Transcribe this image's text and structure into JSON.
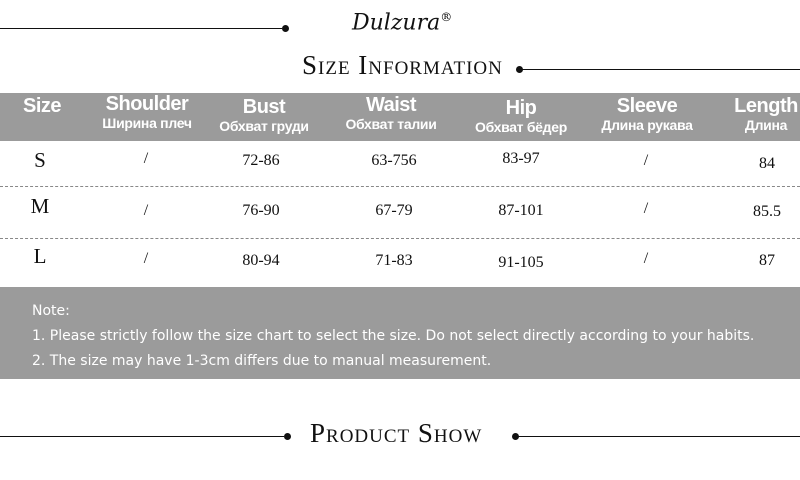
{
  "brand": {
    "logo": "Dulzura",
    "registered": "®"
  },
  "title": "Size Information",
  "columns": [
    {
      "en": "Size",
      "ru": ""
    },
    {
      "en": "Shoulder",
      "ru": "Ширина плеч"
    },
    {
      "en": "Bust",
      "ru": "Обхват груди"
    },
    {
      "en": "Waist",
      "ru": "Обхват талии"
    },
    {
      "en": "Hip",
      "ru": "Обхват бёдер"
    },
    {
      "en": "Sleeve",
      "ru": "Длина рукава"
    },
    {
      "en": "Length",
      "ru": "Длина"
    }
  ],
  "rows": [
    [
      "S",
      "/",
      "72-86",
      "63-756",
      "83-97",
      "/",
      "84"
    ],
    [
      "M",
      "/",
      "76-90",
      "67-79",
      "87-101",
      "/",
      "85.5"
    ],
    [
      "L",
      "/",
      "80-94",
      "71-83",
      "91-105",
      "/",
      "87"
    ]
  ],
  "note": {
    "heading": "Note:",
    "lines": [
      "1. Please strictly follow the size chart to select the size. Do not select directly according to your habits.",
      "2. The size may have 1-3cm differs due to manual measurement."
    ]
  },
  "section2": "Product Show"
}
